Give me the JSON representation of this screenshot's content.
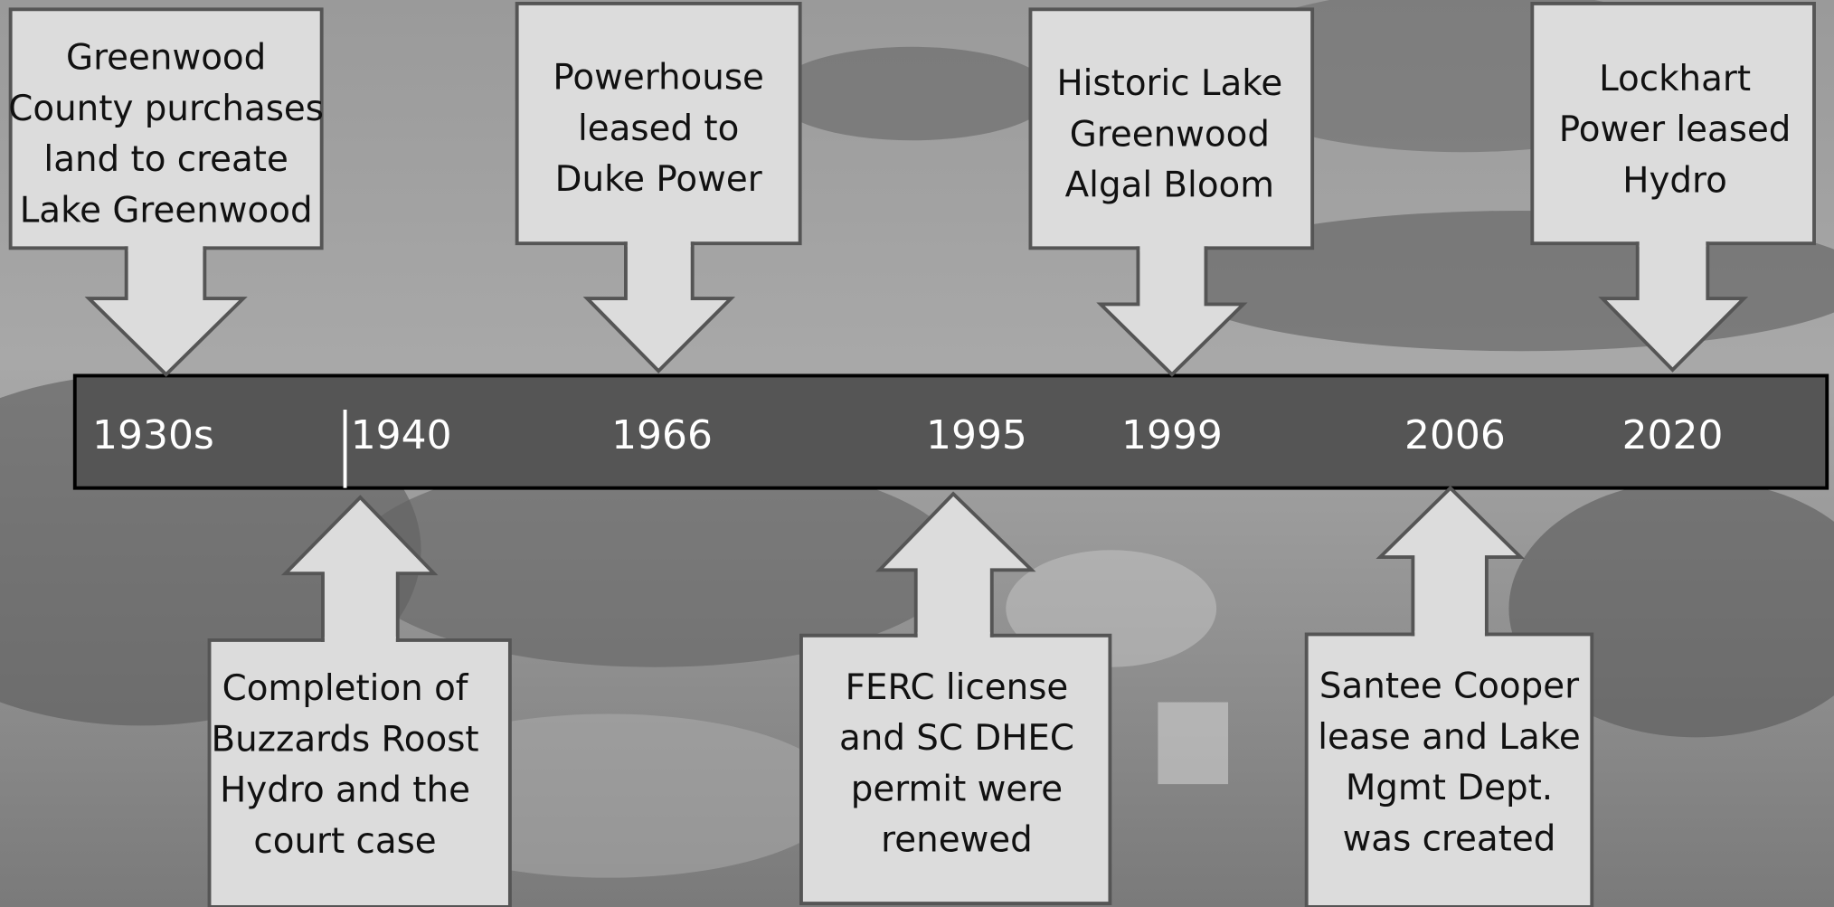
{
  "timeline": {
    "events": [
      {
        "year": "1930s",
        "lines": [
          "Greenwood",
          "County purchases",
          "land to create",
          "Lake Greenwood"
        ]
      },
      {
        "year": "1940",
        "lines": [
          "Completion of",
          "Buzzards Roost",
          "Hydro and the",
          "court case"
        ]
      },
      {
        "year": "1966",
        "lines": [
          "Powerhouse",
          "leased to",
          "Duke Power"
        ]
      },
      {
        "year": "1995",
        "lines": [
          "FERC license",
          "and SC DHEC",
          "permit were",
          "renewed"
        ]
      },
      {
        "year": "1999",
        "lines": [
          "Historic Lake",
          "Greenwood",
          "Algal Bloom"
        ]
      },
      {
        "year": "2006",
        "lines": [
          "Santee Cooper",
          "lease and Lake",
          "Mgmt Dept.",
          "was created"
        ]
      },
      {
        "year": "2020",
        "lines": [
          "Lockhart",
          "Power leased",
          "Hydro"
        ]
      }
    ]
  }
}
